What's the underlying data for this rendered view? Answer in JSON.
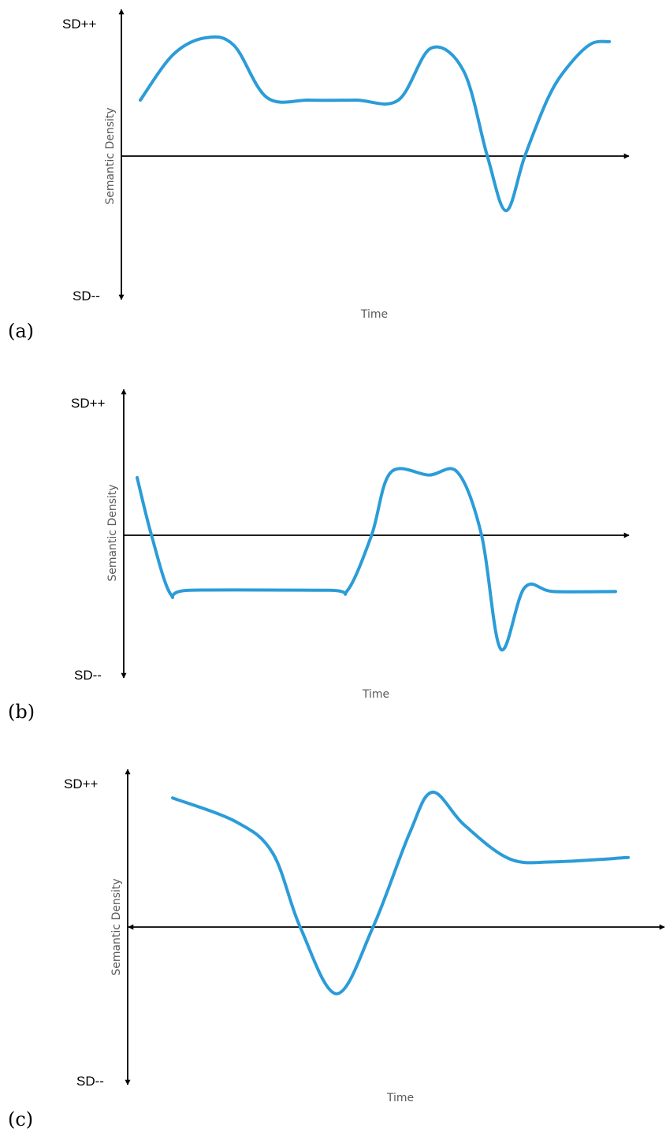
{
  "chart_data": [
    {
      "type": "line",
      "panel_label": "(a)",
      "xlabel": "Time",
      "ylabel": "Semantic Density",
      "y_top_label": "SD++",
      "y_bottom_label": "SD--",
      "ylim": [
        -1,
        1
      ],
      "series": [
        {
          "color": "#2b9cd8",
          "x": [
            0.0,
            0.07,
            0.14,
            0.2,
            0.27,
            0.36,
            0.46,
            0.55,
            0.62,
            0.69,
            0.74,
            0.78,
            0.82,
            0.87,
            0.91,
            0.96,
            1.0
          ],
          "y": [
            0.43,
            0.78,
            0.91,
            0.85,
            0.45,
            0.43,
            0.43,
            0.43,
            0.83,
            0.65,
            0.0,
            -0.42,
            0.0,
            0.45,
            0.68,
            0.86,
            0.88
          ]
        }
      ]
    },
    {
      "type": "line",
      "panel_label": "(b)",
      "xlabel": "Time",
      "ylabel": "Semantic Density",
      "y_top_label": "SD++",
      "y_bottom_label": "SD--",
      "ylim": [
        -1,
        1
      ],
      "series": [
        {
          "color": "#2b9cd8",
          "x": [
            0.0,
            0.03,
            0.07,
            0.11,
            0.4,
            0.44,
            0.49,
            0.53,
            0.61,
            0.67,
            0.72,
            0.76,
            0.81,
            0.87,
            1.0
          ],
          "y": [
            0.44,
            0.0,
            -0.45,
            -0.42,
            -0.42,
            -0.42,
            0.0,
            0.48,
            0.46,
            0.48,
            0.0,
            -0.87,
            -0.4,
            -0.43,
            -0.43
          ]
        }
      ]
    },
    {
      "type": "line",
      "panel_label": "(c)",
      "xlabel": "Time",
      "ylabel": "Semantic Density",
      "y_top_label": "SD++",
      "y_bottom_label": "SD--",
      "ylim": [
        -1,
        1
      ],
      "series": [
        {
          "color": "#2b9cd8",
          "x": [
            0.0,
            0.14,
            0.22,
            0.28,
            0.36,
            0.44,
            0.52,
            0.57,
            0.64,
            0.74,
            0.84,
            1.0
          ],
          "y": [
            0.91,
            0.74,
            0.52,
            0.0,
            -0.47,
            0.0,
            0.66,
            0.95,
            0.72,
            0.48,
            0.46,
            0.49
          ]
        }
      ]
    }
  ]
}
